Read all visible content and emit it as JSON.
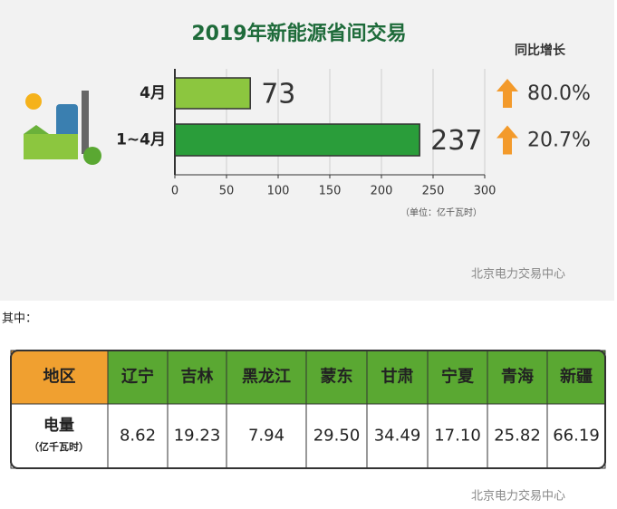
{
  "chart_data": {
    "type": "hbar",
    "title": "2019年新能源省间交易",
    "categories": [
      "4月",
      "1~4月"
    ],
    "values": [
      73,
      237
    ],
    "colors": [
      "#8cc63f",
      "#2a9d3a"
    ],
    "xlim": [
      0,
      300
    ],
    "xticks": [
      0,
      50,
      100,
      150,
      200,
      250,
      300
    ],
    "grid": true,
    "unit": "（单位：亿千瓦时）",
    "growth_title": "同比增长",
    "growth": [
      "80.0%",
      "20.7%"
    ]
  },
  "watermark": "北京电力交易中心",
  "intro": "其中：",
  "table": {
    "header": [
      "地区",
      "辽宁",
      "吉林",
      "黑龙江",
      "蒙东",
      "甘肃",
      "宁夏",
      "青海",
      "新疆"
    ],
    "row_label": "电量",
    "row_unit": "（亿千瓦时）",
    "values": [
      "8.62",
      "19.23",
      "7.94",
      "29.50",
      "34.49",
      "17.10",
      "25.82",
      "66.19"
    ]
  }
}
